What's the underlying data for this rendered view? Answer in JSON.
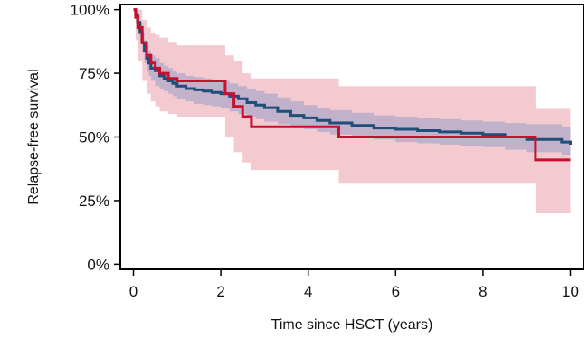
{
  "chart_data": {
    "type": "line",
    "subtype": "kaplan-meier step curves with shaded confidence bands",
    "title": "",
    "xlabel": "Time since HSCT (years)",
    "ylabel": "Relapse-free survival",
    "xlim": [
      -0.3,
      10.3
    ],
    "ylim": [
      -0.02,
      1.02
    ],
    "x_ticks": [
      0,
      2,
      4,
      6,
      8,
      10
    ],
    "x_tick_labels": [
      "0",
      "2",
      "4",
      "6",
      "8",
      "10"
    ],
    "y_ticks": [
      0,
      0.25,
      0.5,
      0.75,
      1.0
    ],
    "y_tick_labels": [
      "0%",
      "25%",
      "50%",
      "75%",
      "100%"
    ],
    "grid": false,
    "legend": "none",
    "series": [
      {
        "color": "#1f4e79",
        "band_color": "#b0a8c8",
        "x": [
          0,
          0.05,
          0.1,
          0.15,
          0.2,
          0.25,
          0.3,
          0.35,
          0.4,
          0.5,
          0.6,
          0.7,
          0.8,
          0.9,
          1.0,
          1.2,
          1.4,
          1.6,
          1.8,
          2.0,
          2.2,
          2.4,
          2.6,
          2.8,
          3.0,
          3.3,
          3.6,
          3.9,
          4.2,
          4.5,
          5.0,
          5.5,
          6.0,
          6.5,
          7.0,
          7.5,
          8.0,
          8.5,
          9.0,
          9.5,
          9.8,
          10.0
        ],
        "y": [
          1.0,
          0.98,
          0.95,
          0.91,
          0.87,
          0.84,
          0.81,
          0.79,
          0.77,
          0.76,
          0.74,
          0.73,
          0.72,
          0.71,
          0.7,
          0.69,
          0.685,
          0.68,
          0.675,
          0.67,
          0.66,
          0.65,
          0.635,
          0.625,
          0.615,
          0.6,
          0.585,
          0.575,
          0.565,
          0.555,
          0.545,
          0.535,
          0.53,
          0.525,
          0.52,
          0.515,
          0.51,
          0.5,
          0.49,
          0.49,
          0.48,
          0.47
        ],
        "lower": [
          1.0,
          0.95,
          0.91,
          0.87,
          0.83,
          0.79,
          0.76,
          0.74,
          0.72,
          0.7,
          0.69,
          0.68,
          0.67,
          0.66,
          0.65,
          0.64,
          0.63,
          0.625,
          0.62,
          0.615,
          0.6,
          0.59,
          0.58,
          0.57,
          0.56,
          0.55,
          0.54,
          0.53,
          0.52,
          0.51,
          0.5,
          0.49,
          0.48,
          0.475,
          0.47,
          0.465,
          0.46,
          0.45,
          0.44,
          0.44,
          0.43,
          0.43
        ],
        "upper": [
          1.0,
          1.0,
          0.98,
          0.95,
          0.91,
          0.88,
          0.86,
          0.84,
          0.82,
          0.81,
          0.79,
          0.78,
          0.77,
          0.76,
          0.75,
          0.74,
          0.735,
          0.73,
          0.725,
          0.72,
          0.71,
          0.7,
          0.69,
          0.68,
          0.67,
          0.655,
          0.64,
          0.625,
          0.615,
          0.605,
          0.595,
          0.585,
          0.58,
          0.575,
          0.57,
          0.565,
          0.56,
          0.555,
          0.55,
          0.55,
          0.54,
          0.53
        ]
      },
      {
        "color": "#c8102e",
        "band_color": "#f3c4cc",
        "x": [
          0,
          0.05,
          0.1,
          0.2,
          0.3,
          0.4,
          0.5,
          0.6,
          0.8,
          1.0,
          2.1,
          2.3,
          2.5,
          2.7,
          4.7,
          9.2,
          10.0
        ],
        "y": [
          1.0,
          0.97,
          0.93,
          0.87,
          0.82,
          0.79,
          0.77,
          0.75,
          0.73,
          0.72,
          0.67,
          0.62,
          0.58,
          0.54,
          0.5,
          0.41,
          0.41
        ],
        "lower": [
          1.0,
          0.88,
          0.8,
          0.72,
          0.67,
          0.64,
          0.62,
          0.6,
          0.59,
          0.58,
          0.5,
          0.44,
          0.4,
          0.37,
          0.32,
          0.2,
          0.2
        ],
        "upper": [
          1.0,
          1.0,
          1.0,
          0.96,
          0.93,
          0.91,
          0.9,
          0.89,
          0.87,
          0.86,
          0.82,
          0.8,
          0.75,
          0.73,
          0.7,
          0.61,
          0.61
        ]
      }
    ]
  }
}
